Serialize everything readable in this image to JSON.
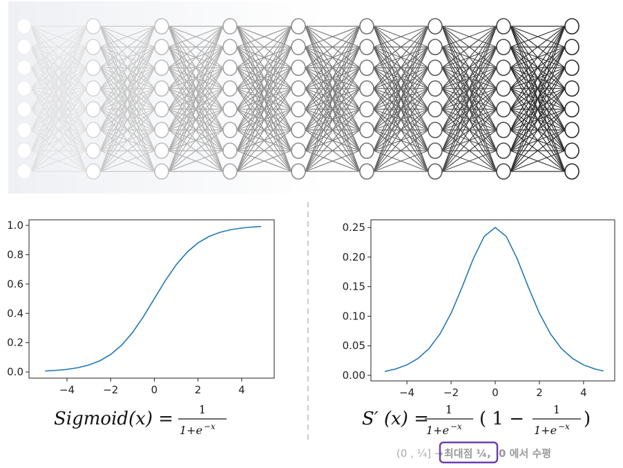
{
  "chart_data": [
    {
      "type": "line",
      "x": [
        -5,
        -4.5,
        -4,
        -3.5,
        -3,
        -2.5,
        -2,
        -1.5,
        -1,
        -0.5,
        0,
        0.5,
        1,
        1.5,
        2,
        2.5,
        3,
        3.5,
        4,
        4.5,
        4.9
      ],
      "series": [
        {
          "color": "#1f77b4",
          "values": [
            0.0067,
            0.011,
            0.018,
            0.0293,
            0.0474,
            0.0759,
            0.1192,
            0.1824,
            0.2689,
            0.3775,
            0.5,
            0.6225,
            0.7311,
            0.8176,
            0.8808,
            0.9241,
            0.9526,
            0.9707,
            0.982,
            0.989,
            0.9926
          ]
        }
      ],
      "xlim": [
        -5.74,
        5.49
      ],
      "ylim": [
        -0.042,
        1.038
      ],
      "xticks": [
        {
          "value": -4,
          "label": "−4"
        },
        {
          "value": -2,
          "label": "−2"
        },
        0,
        2,
        4
      ],
      "yticks": [
        {
          "value": 0,
          "label": "0.0"
        },
        0.2,
        0.4,
        0.6,
        0.8,
        {
          "value": 1,
          "label": "1.0"
        }
      ]
    },
    {
      "type": "line",
      "x": [
        -5,
        -4.5,
        -4,
        -3.5,
        -3,
        -2.5,
        -2,
        -1.5,
        -1,
        -0.5,
        0,
        0.5,
        1,
        1.5,
        2,
        2.5,
        3,
        3.5,
        4,
        4.5,
        4.9
      ],
      "series": [
        {
          "color": "#1f77b4",
          "values": [
            0.0066,
            0.0109,
            0.0177,
            0.0285,
            0.0452,
            0.0701,
            0.105,
            0.1491,
            0.1966,
            0.235,
            0.25,
            0.235,
            0.1966,
            0.1491,
            0.105,
            0.0701,
            0.0452,
            0.0285,
            0.0177,
            0.0109,
            0.0073
          ]
        }
      ],
      "xlim": [
        -5.63,
        5.41
      ],
      "ylim": [
        -0.0094,
        0.263
      ],
      "xticks": [
        {
          "value": -4,
          "label": "−4"
        },
        {
          "value": -2,
          "label": "−2"
        },
        0,
        2,
        4
      ],
      "yticks": [
        {
          "value": 0,
          "label": "0.00"
        },
        0.05,
        {
          "value": 0.1,
          "label": "0.10"
        },
        0.15,
        {
          "value": 0.2,
          "label": "0.20"
        },
        0.25
      ]
    }
  ],
  "formulas": {
    "left": {
      "lhs": "Sigmoid(x) =",
      "num": "1",
      "den": "1+e",
      "exp": "−x"
    },
    "right": {
      "lhs": "S′ (x) =",
      "num": "1",
      "den": "1+e",
      "exp": "−x",
      "open": "( 1 −",
      "num2": "1",
      "den2": "1+e",
      "exp2": "−x",
      "close": ")"
    }
  },
  "note": {
    "range": "(0 , ¼] →",
    "highlight": "최대점 ¼,",
    "rest": "0 에서 수평"
  }
}
